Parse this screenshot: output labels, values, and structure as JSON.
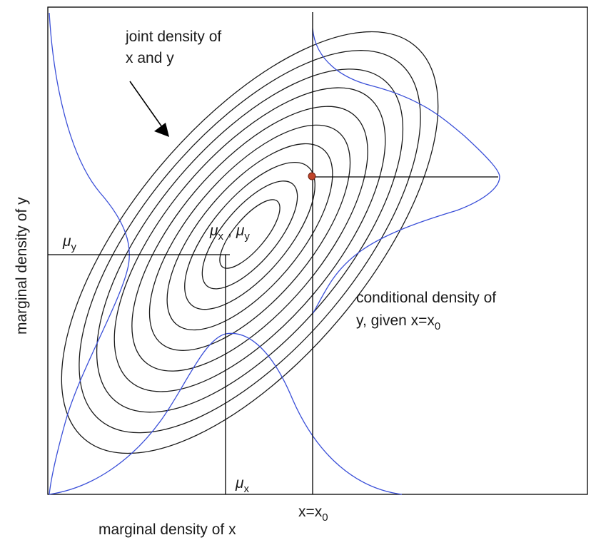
{
  "labels": {
    "joint_line1": "joint density of",
    "joint_line2": "x and y",
    "marginal_y": "marginal density of y",
    "marginal_x": "marginal density of x",
    "conditional_line1": "conditional density of",
    "conditional_line2_prefix": "y, given x=x",
    "conditional_line2_sub": "0",
    "mu": "μ",
    "sub_x": "x",
    "sub_y": "y",
    "sep": ",",
    "x_eq_prefix": "x=x",
    "x_eq_sub": "0"
  },
  "colors": {
    "frame": "#000000",
    "contours": "#1a1a1a",
    "marginal_curves": "#3a4fd8",
    "point": "#c0442a",
    "text": "#1a1a1a"
  },
  "contour_count": 10
}
